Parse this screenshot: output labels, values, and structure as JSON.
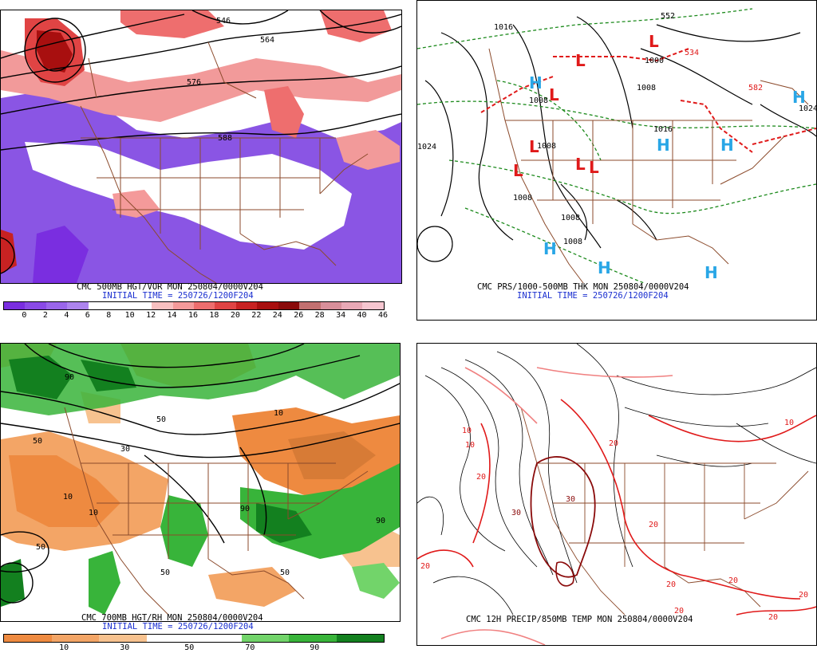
{
  "panels": [
    {
      "caption": "CMC 500MB HGT/VOR MON 250804/0000V204",
      "init": "INITIAL TIME = 250726/1200F204",
      "contour_labels": [
        "546",
        "564",
        "576",
        "588"
      ],
      "colorbar": {
        "colors": [
          "#7a2ee0",
          "#8a4ae6",
          "#9a66ea",
          "#ad84ee",
          "#ffffff",
          "#ffffff",
          "#ffffff",
          "#f8c0c0",
          "#f49a9a",
          "#ee6e6e",
          "#e04444",
          "#c82222",
          "#a80f0f",
          "#8a0a0a",
          "#c27070",
          "#d88f9a",
          "#e9a9b6",
          "#f6c6d0"
        ],
        "ticks": [
          "0",
          "2",
          "4",
          "6",
          "8",
          "10",
          "12",
          "14",
          "16",
          "18",
          "20",
          "22",
          "24",
          "26",
          "28",
          "34",
          "40",
          "46"
        ]
      }
    },
    {
      "caption": "CMC PRS/1000-500MB THK MON 250804/0000V204",
      "init": "INITIAL TIME = 250726/1200F204",
      "pressure_labels": [
        "1024",
        "1016",
        "1008",
        "1008",
        "1008",
        "1008",
        "1008",
        "1024",
        "1016",
        "1008",
        "1000"
      ],
      "thickness_labels": [
        "552",
        "534",
        "582"
      ],
      "highs": [
        "H",
        "H",
        "H",
        "H",
        "H",
        "H",
        "H"
      ],
      "lows": [
        "L",
        "L",
        "L",
        "L",
        "L",
        "L",
        "L"
      ]
    },
    {
      "caption": "CMC 700MB HGT/RH MON 250804/0000V204",
      "init": "INITIAL TIME = 250726/1200F204",
      "contour_labels": [
        "10",
        "50",
        "90",
        "10",
        "50",
        "30",
        "50",
        "90",
        "10",
        "50",
        "90",
        "50"
      ],
      "colorbar": {
        "colors": [
          "#ee8a40",
          "#f3a566",
          "#f7c28f",
          "#ffffff",
          "#ffffff",
          "#72d46a",
          "#38b43a",
          "#13801f"
        ],
        "ticks": [
          "10",
          "30",
          "50",
          "70",
          "90"
        ]
      }
    },
    {
      "caption": "CMC 12H PRECIP/850MB TEMP MON 250804/0000V204",
      "temp_labels": [
        "10",
        "10",
        "20",
        "20",
        "30",
        "30",
        "20",
        "20",
        "20",
        "20",
        "10",
        "20",
        "20",
        "20"
      ]
    }
  ],
  "colors": {
    "state_lines": "#8b4a2b",
    "contour": "#000000",
    "init_text": "#1a2fd0",
    "high": "#29a6e6",
    "low": "#e01a1a",
    "thickness": "#1c8a1c"
  }
}
